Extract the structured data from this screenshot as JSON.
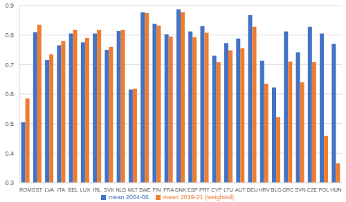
{
  "chart_data": {
    "type": "bar",
    "categories": [
      "ROM",
      "EST",
      "LVA",
      "ITA",
      "BEL",
      "LUX",
      "IRL",
      "SVK",
      "NLD",
      "MLT",
      "SWE",
      "FIN",
      "FRA",
      "DNK",
      "ESP",
      "PRT",
      "CYP",
      "LTU",
      "AUT",
      "DEU",
      "HRV",
      "BLG",
      "GRC",
      "SVN",
      "CZE",
      "POL",
      "HUN"
    ],
    "series": [
      {
        "name": "mean 2004-06",
        "color": "#4472c4",
        "values": [
          0.505,
          0.81,
          0.715,
          0.765,
          0.805,
          0.775,
          0.805,
          0.75,
          0.813,
          0.615,
          0.877,
          0.838,
          0.803,
          0.887,
          0.812,
          0.83,
          0.73,
          0.773,
          0.788,
          0.868,
          0.713,
          0.622,
          0.812,
          0.742,
          0.828,
          0.805,
          0.77
        ]
      },
      {
        "name": "mean 2019-21 (weighted)",
        "color": "#ed7d31",
        "values": [
          0.585,
          0.835,
          0.735,
          0.78,
          0.818,
          0.79,
          0.818,
          0.76,
          0.818,
          0.618,
          0.875,
          0.832,
          0.795,
          0.878,
          0.793,
          0.808,
          0.708,
          0.748,
          0.755,
          0.828,
          0.635,
          0.522,
          0.71,
          0.64,
          0.708,
          0.458,
          0.365
        ]
      }
    ],
    "ylim": [
      0.3,
      0.9
    ],
    "yticks": [
      0.3,
      0.4,
      0.5,
      0.6,
      0.7,
      0.8,
      0.9
    ],
    "grid": true,
    "legend": "bottom"
  }
}
